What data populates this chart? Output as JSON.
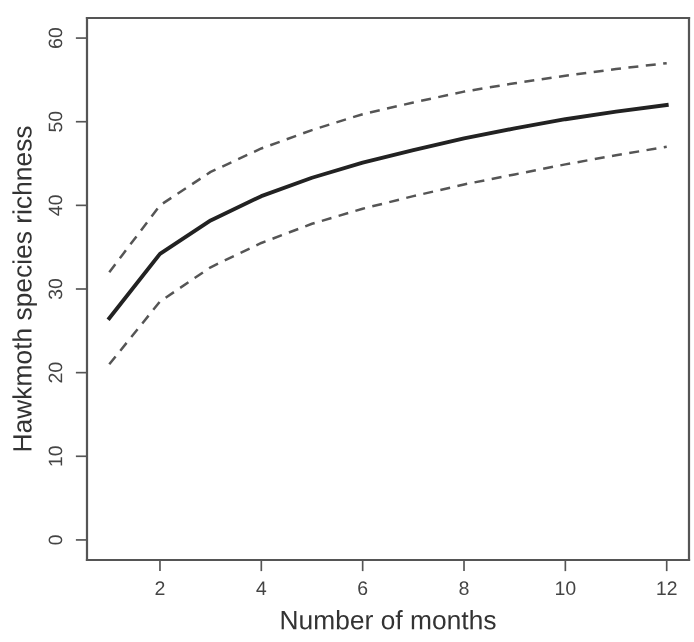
{
  "chart_data": {
    "type": "line",
    "xlabel": "Number of months",
    "ylabel": "Hawkmoth species richness",
    "x": [
      1,
      2,
      3,
      4,
      5,
      6,
      7,
      8,
      9,
      10,
      11,
      12
    ],
    "series": [
      {
        "color": "#222222",
        "line_style": "solid",
        "values": [
          26.5,
          34.2,
          38.2,
          41.1,
          43.3,
          45.1,
          46.6,
          48,
          49.2,
          50.3,
          51.2,
          52
        ]
      },
      {
        "color": "#555555",
        "line_style": "dashed",
        "values": [
          32,
          40,
          44,
          46.8,
          49,
          50.9,
          52.3,
          53.6,
          54.6,
          55.5,
          56.3,
          57
        ]
      },
      {
        "color": "#555555",
        "line_style": "dashed",
        "values": [
          21,
          28.5,
          32.6,
          35.5,
          37.8,
          39.6,
          41.1,
          42.5,
          43.7,
          44.9,
          46,
          47
        ]
      }
    ],
    "xlim": [
      0.56,
      12.44
    ],
    "ylim": [
      -2.4,
      62.4
    ],
    "xticks": [
      2,
      4,
      6,
      8,
      10,
      12
    ],
    "yticks": [
      0,
      10,
      20,
      30,
      40,
      50,
      60
    ],
    "marker": "none"
  }
}
